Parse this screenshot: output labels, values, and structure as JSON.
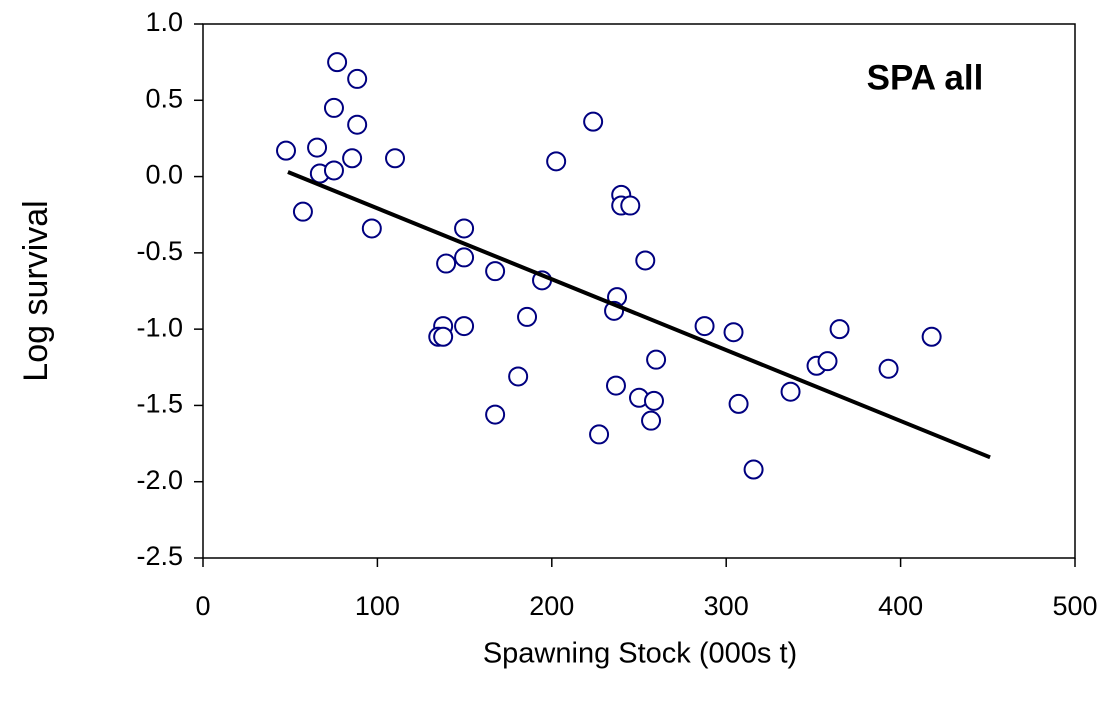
{
  "chart_data": {
    "type": "scatter",
    "annotation": "SPA all",
    "xlabel": "Spawning Stock (000s t)",
    "ylabel": "Log survival",
    "color": "#000080",
    "x": [
      47.6,
      65.4,
      76.9,
      88.4,
      75.1,
      88.4,
      85.5,
      110.1,
      67.0,
      75.1,
      57.3,
      96.8,
      149.7,
      139.4,
      149.7,
      137.7,
      149.7,
      134.9,
      137.7,
      167.5,
      185.8,
      194.4,
      180.7,
      167.5,
      202.5,
      223.7,
      239.8,
      239.8,
      245.0,
      253.6,
      237.4,
      235.7,
      236.8,
      250.0,
      258.6,
      256.9,
      259.8,
      227.1,
      287.6,
      304.2,
      307.1,
      315.7,
      336.9,
      351.8,
      358.1,
      365.0,
      393.1,
      417.8
    ],
    "values": [
      0.17,
      0.19,
      0.75,
      0.64,
      0.45,
      0.34,
      0.12,
      0.12,
      0.02,
      0.04,
      -0.23,
      -0.34,
      -0.34,
      -0.57,
      -0.53,
      -0.98,
      -0.98,
      -1.05,
      -1.05,
      -0.62,
      -0.92,
      -0.68,
      -1.31,
      -1.56,
      0.1,
      0.36,
      -0.12,
      -0.19,
      -0.19,
      -0.55,
      -0.79,
      -0.88,
      -1.37,
      -1.45,
      -1.47,
      -1.6,
      -1.2,
      -1.69,
      -0.98,
      -1.02,
      -1.49,
      -1.92,
      -1.41,
      -1.24,
      -1.21,
      -1.0,
      -1.26,
      -1.05
    ],
    "fit": {
      "x": [
        48.7,
        451.3
      ],
      "values": [
        0.03,
        -1.84
      ],
      "color": "#000000"
    },
    "xlim": [
      0,
      500
    ],
    "xticks": [
      0,
      100,
      200,
      300,
      400,
      500
    ],
    "ylim": [
      -2.5,
      1.0
    ],
    "yticks": [
      {
        "value": -2.5,
        "label": "-2.5"
      },
      {
        "value": -2.0,
        "label": "-2.0"
      },
      {
        "value": -1.5,
        "label": "-1.5"
      },
      {
        "value": -1.0,
        "label": "-1.0"
      },
      {
        "value": -0.5,
        "label": "-0.5"
      },
      {
        "value": 0.0,
        "label": "0.0"
      },
      {
        "value": 0.5,
        "label": "0.5"
      },
      {
        "value": 1.0,
        "label": "1.0"
      }
    ]
  }
}
